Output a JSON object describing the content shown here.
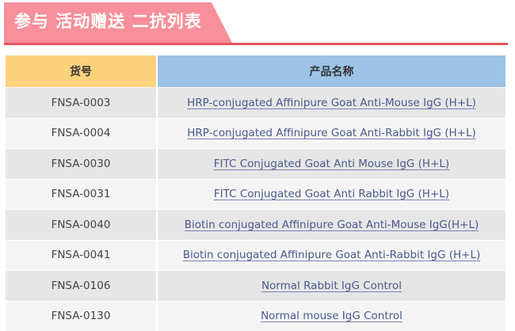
{
  "banner": {
    "title": "参与 活动赠送 二抗列表",
    "colors": {
      "banner": "#f7909a",
      "line": "#e8545f"
    }
  },
  "table": {
    "headers": [
      "货号",
      "产品名称"
    ],
    "header_colors": [
      "#fdd27c",
      "#9cc3e6"
    ],
    "rows": [
      {
        "code": "FNSA-0003",
        "name": "HRP-conjugated Affinipure Goat Anti-Mouse IgG (H+L)"
      },
      {
        "code": "FNSA-0004",
        "name": "HRP-conjugated Affinipure Goat Anti-Rabbit IgG (H+L)"
      },
      {
        "code": "FNSA-0030",
        "name": "FITC Conjugated Goat Anti Mouse IgG (H+L)"
      },
      {
        "code": "FNSA-0031",
        "name": "FITC Conjugated Goat Anti Rabbit IgG (H+L)"
      },
      {
        "code": "FNSA-0040",
        "name": "Biotin conjugated Affinipure Goat Anti-Mouse IgG(H+L)"
      },
      {
        "code": "FNSA-0041",
        "name": "Biotin conjugated Affinipure Goat Anti-Rabbit IgG (H+L)"
      },
      {
        "code": "FNSA-0106",
        "name": "Normal Rabbit IgG Control"
      },
      {
        "code": "FNSA-0130",
        "name": "Normal mouse IgG Control"
      }
    ]
  }
}
